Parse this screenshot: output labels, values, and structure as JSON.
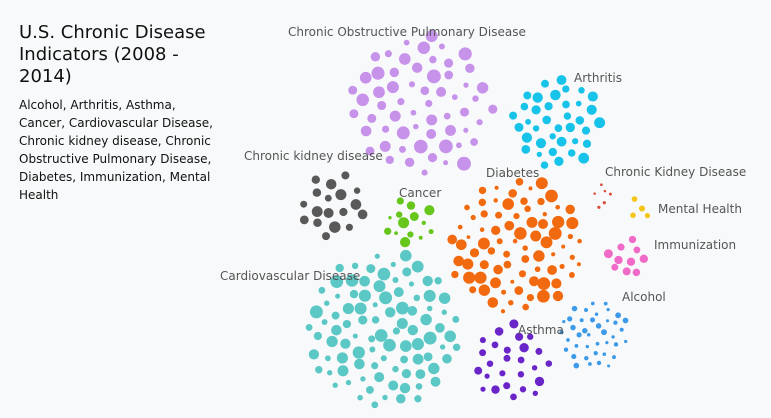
{
  "header": {
    "title": "U.S. Chronic Disease Indicators (2008 - 2014)",
    "subtitle": "Alcohol, Arthritis, Asthma, Cancer, Cardiovascular Disease, Chronic kidney disease, Chronic Obstructive Pulmonary Disease, Diabetes, Immunization, Mental Health"
  },
  "chart_data": {
    "type": "scatter",
    "title": "U.S. Chronic Disease Indicators (2008 - 2014)",
    "categories": [
      "Chronic Obstructive Pulmonary Disease",
      "Arthritis",
      "Chronic kidney disease",
      "Cancer",
      "Diabetes",
      "Chronic Kidney Disease",
      "Mental Health",
      "Immunization",
      "Cardiovascular Disease",
      "Alcohol",
      "Asthma"
    ],
    "series": [
      {
        "name": "Chronic Obstructive Pulmonary Disease",
        "color": "#c792ea",
        "count": 60
      },
      {
        "name": "Arthritis",
        "color": "#17c3e8",
        "count": 38
      },
      {
        "name": "Chronic kidney disease",
        "color": "#595959",
        "count": 18
      },
      {
        "name": "Cancer",
        "color": "#66c61c",
        "count": 14
      },
      {
        "name": "Diabetes",
        "color": "#f26a0f",
        "count": 80
      },
      {
        "name": "Chronic Kidney Disease",
        "color": "#d94a3a",
        "count": 6
      },
      {
        "name": "Mental Health",
        "color": "#f5c518",
        "count": 4
      },
      {
        "name": "Immunization",
        "color": "#f06ac8",
        "count": 10
      },
      {
        "name": "Cardiovascular Disease",
        "color": "#5bc8c6",
        "count": 95
      },
      {
        "name": "Alcohol",
        "color": "#3c9ae8",
        "count": 40
      },
      {
        "name": "Asthma",
        "color": "#6a25c9",
        "count": 26
      }
    ],
    "legend": "none",
    "grid": false
  }
}
